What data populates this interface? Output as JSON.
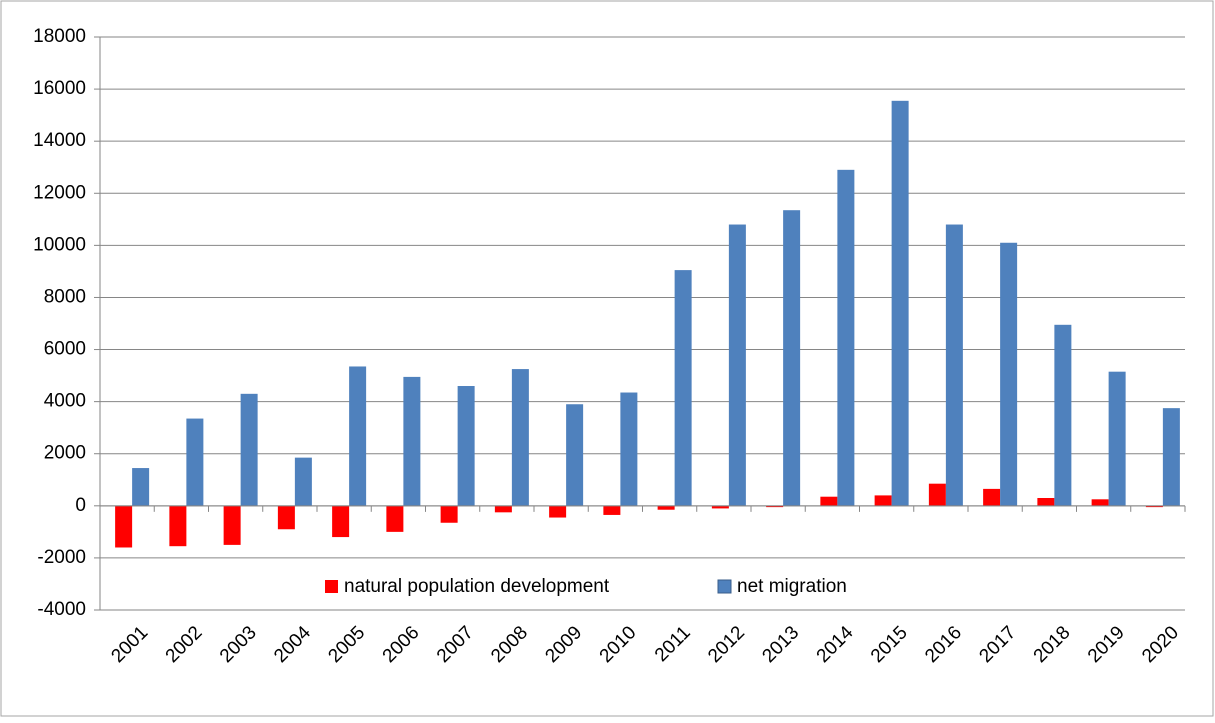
{
  "chart_data": {
    "type": "bar",
    "categories": [
      "2001",
      "2002",
      "2003",
      "2004",
      "2005",
      "2006",
      "2007",
      "2008",
      "2009",
      "2010",
      "2011",
      "2012",
      "2013",
      "2014",
      "2015",
      "2016",
      "2017",
      "2018",
      "2019",
      "2020"
    ],
    "series": [
      {
        "name": "natural population development",
        "color": "#ff0000",
        "values": [
          -1600,
          -1550,
          -1500,
          -900,
          -1200,
          -1000,
          -650,
          -250,
          -450,
          -350,
          -150,
          -100,
          -50,
          350,
          400,
          850,
          650,
          300,
          250,
          -50
        ]
      },
      {
        "name": "net migration",
        "color": "#4f81bd",
        "values": [
          1450,
          3350,
          4300,
          1850,
          5350,
          4950,
          4600,
          5250,
          3900,
          4350,
          9050,
          10800,
          11350,
          12900,
          15550,
          10800,
          10100,
          6950,
          5150,
          3750
        ]
      }
    ],
    "ylim": [
      -4000,
      18000
    ],
    "yticks": [
      -4000,
      -2000,
      0,
      2000,
      4000,
      6000,
      8000,
      10000,
      12000,
      14000,
      16000,
      18000
    ],
    "grid": true,
    "legend": "bottom"
  }
}
